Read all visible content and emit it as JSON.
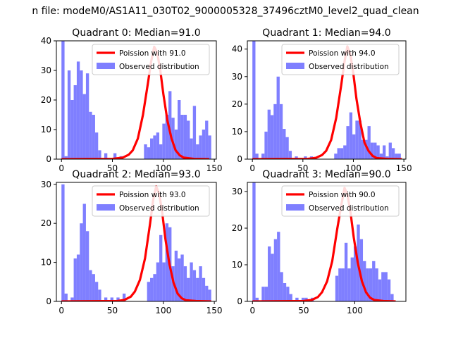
{
  "figure": {
    "suptitle": "n file: modeM0/AS1A11_030T02_9000005328_37496cztM0_level2_quad_clean"
  },
  "colors": {
    "poisson_line": "#ff0000",
    "observed_bars": "#7f7fff",
    "axes": "#000000",
    "background": "#ffffff"
  },
  "chart_data": [
    {
      "type": "bar",
      "title": "Quadrant 0: Median=91.0",
      "xlim": [
        -5,
        152
      ],
      "ylim": [
        0,
        40
      ],
      "xticks": [
        0,
        50,
        100,
        150
      ],
      "yticks": [
        0,
        10,
        20,
        30,
        40
      ],
      "bin_width": 3,
      "legend_placement": "top-right",
      "series": [
        {
          "name": "Poission with 91.0",
          "kind": "line",
          "mean": 91.0,
          "peak": 38,
          "points": [
            [
              0,
              0
            ],
            [
              50,
              0.1
            ],
            [
              60,
              0.5
            ],
            [
              66,
              1.5
            ],
            [
              70,
              3
            ],
            [
              75,
              7
            ],
            [
              80,
              15
            ],
            [
              85,
              26
            ],
            [
              88,
              33
            ],
            [
              91,
              38
            ],
            [
              94,
              36
            ],
            [
              97,
              30
            ],
            [
              100,
              22
            ],
            [
              104,
              13
            ],
            [
              108,
              7
            ],
            [
              112,
              3
            ],
            [
              116,
              1.3
            ],
            [
              120,
              0.5
            ],
            [
              130,
              0.1
            ],
            [
              145,
              0
            ]
          ]
        },
        {
          "name": "Observed distribution",
          "kind": "histogram",
          "bins": [
            [
              0,
              40
            ],
            [
              3,
              1
            ],
            [
              6,
              30
            ],
            [
              9,
              20
            ],
            [
              12,
              25
            ],
            [
              15,
              33
            ],
            [
              18,
              30
            ],
            [
              21,
              22
            ],
            [
              24,
              29
            ],
            [
              27,
              16
            ],
            [
              30,
              15
            ],
            [
              33,
              9
            ],
            [
              36,
              3
            ],
            [
              42,
              2
            ],
            [
              51,
              2
            ],
            [
              57,
              1
            ],
            [
              81,
              5
            ],
            [
              84,
              4
            ],
            [
              87,
              7
            ],
            [
              90,
              8
            ],
            [
              93,
              9
            ],
            [
              96,
              5
            ],
            [
              99,
              12
            ],
            [
              102,
              15
            ],
            [
              105,
              23
            ],
            [
              108,
              14
            ],
            [
              111,
              10
            ],
            [
              114,
              20
            ],
            [
              117,
              15
            ],
            [
              120,
              15
            ],
            [
              123,
              13
            ],
            [
              126,
              7
            ],
            [
              129,
              18
            ],
            [
              132,
              5
            ],
            [
              135,
              8
            ],
            [
              138,
              10
            ],
            [
              141,
              13
            ],
            [
              144,
              8
            ]
          ]
        }
      ]
    },
    {
      "type": "bar",
      "title": "Quadrant 1: Median=94.0",
      "xlim": [
        -5,
        152
      ],
      "ylim": [
        0,
        43
      ],
      "xticks": [
        0,
        50,
        100,
        150
      ],
      "yticks": [
        0,
        10,
        20,
        30,
        40
      ],
      "bin_width": 3,
      "legend_placement": "top-right",
      "series": [
        {
          "name": "Poission with 94.0",
          "kind": "line",
          "mean": 94.0,
          "peak": 41,
          "points": [
            [
              0,
              0
            ],
            [
              55,
              0.1
            ],
            [
              63,
              0.5
            ],
            [
              69,
              1.5
            ],
            [
              73,
              3
            ],
            [
              78,
              7
            ],
            [
              83,
              15
            ],
            [
              88,
              27
            ],
            [
              91,
              35
            ],
            [
              94,
              41
            ],
            [
              97,
              38
            ],
            [
              100,
              31
            ],
            [
              103,
              22
            ],
            [
              107,
              13
            ],
            [
              111,
              6
            ],
            [
              115,
              3
            ],
            [
              119,
              1.2
            ],
            [
              123,
              0.4
            ],
            [
              133,
              0.1
            ],
            [
              148,
              0
            ]
          ]
        },
        {
          "name": "Observed distribution",
          "kind": "histogram",
          "bins": [
            [
              0,
              44
            ],
            [
              3,
              2
            ],
            [
              9,
              2
            ],
            [
              12,
              10
            ],
            [
              15,
              18
            ],
            [
              18,
              16
            ],
            [
              21,
              20
            ],
            [
              24,
              30
            ],
            [
              27,
              20
            ],
            [
              30,
              11
            ],
            [
              33,
              8
            ],
            [
              36,
              3
            ],
            [
              42,
              1
            ],
            [
              51,
              1
            ],
            [
              57,
              1
            ],
            [
              81,
              2
            ],
            [
              84,
              4
            ],
            [
              87,
              4
            ],
            [
              90,
              5
            ],
            [
              93,
              12
            ],
            [
              96,
              17
            ],
            [
              99,
              9
            ],
            [
              102,
              14
            ],
            [
              105,
              14
            ],
            [
              108,
              7
            ],
            [
              111,
              7
            ],
            [
              114,
              12
            ],
            [
              117,
              6
            ],
            [
              120,
              6
            ],
            [
              123,
              5
            ],
            [
              126,
              2
            ],
            [
              129,
              5
            ],
            [
              132,
              1
            ],
            [
              135,
              6
            ],
            [
              138,
              4
            ],
            [
              141,
              2
            ],
            [
              144,
              2
            ]
          ]
        }
      ]
    },
    {
      "type": "bar",
      "title": "Quadrant 2: Median=93.0",
      "xlim": [
        -5,
        152
      ],
      "ylim": [
        0,
        30.5
      ],
      "xticks": [
        0,
        50,
        100,
        150
      ],
      "yticks": [
        0,
        10,
        20,
        30
      ],
      "bin_width": 3,
      "legend_placement": "top-right",
      "series": [
        {
          "name": "Poission with 93.0",
          "kind": "line",
          "mean": 93.0,
          "peak": 29.5,
          "points": [
            [
              0,
              0
            ],
            [
              55,
              0.1
            ],
            [
              62,
              0.4
            ],
            [
              68,
              1.2
            ],
            [
              72,
              2.5
            ],
            [
              77,
              5.5
            ],
            [
              82,
              11
            ],
            [
              87,
              20
            ],
            [
              90,
              26
            ],
            [
              93,
              29.5
            ],
            [
              96,
              27.5
            ],
            [
              99,
              22.5
            ],
            [
              102,
              16
            ],
            [
              106,
              9.5
            ],
            [
              110,
              4.8
            ],
            [
              114,
              2
            ],
            [
              118,
              0.8
            ],
            [
              122,
              0.3
            ],
            [
              132,
              0.1
            ],
            [
              147,
              0
            ]
          ]
        },
        {
          "name": "Observed distribution",
          "kind": "histogram",
          "bins": [
            [
              0,
              30
            ],
            [
              3,
              2
            ],
            [
              9,
              1
            ],
            [
              12,
              11
            ],
            [
              15,
              12
            ],
            [
              18,
              20
            ],
            [
              21,
              25
            ],
            [
              24,
              18
            ],
            [
              27,
              8
            ],
            [
              30,
              7
            ],
            [
              33,
              5
            ],
            [
              36,
              3
            ],
            [
              42,
              1
            ],
            [
              48,
              1
            ],
            [
              54,
              1
            ],
            [
              60,
              2
            ],
            [
              84,
              5
            ],
            [
              87,
              6
            ],
            [
              90,
              7
            ],
            [
              93,
              10
            ],
            [
              96,
              17
            ],
            [
              99,
              10
            ],
            [
              102,
              20
            ],
            [
              105,
              19
            ],
            [
              108,
              9
            ],
            [
              111,
              13
            ],
            [
              114,
              11
            ],
            [
              117,
              12
            ],
            [
              120,
              9
            ],
            [
              123,
              6
            ],
            [
              126,
              10
            ],
            [
              129,
              8
            ],
            [
              132,
              6
            ],
            [
              135,
              9
            ],
            [
              138,
              6
            ],
            [
              141,
              4
            ],
            [
              144,
              3
            ]
          ]
        }
      ]
    },
    {
      "type": "bar",
      "title": "Quadrant 3: Median=90.0",
      "xlim": [
        -5,
        150
      ],
      "ylim": [
        0,
        32.5
      ],
      "xticks": [
        0,
        50,
        100
      ],
      "yticks": [
        0,
        10,
        20,
        30
      ],
      "bin_width": 3,
      "legend_placement": "top-right",
      "series": [
        {
          "name": "Poission with 90.0",
          "kind": "line",
          "mean": 90.0,
          "peak": 31,
          "points": [
            [
              0,
              0
            ],
            [
              50,
              0.1
            ],
            [
              58,
              0.4
            ],
            [
              64,
              1.2
            ],
            [
              68,
              2.5
            ],
            [
              73,
              5.5
            ],
            [
              78,
              11
            ],
            [
              83,
              20
            ],
            [
              87,
              26.5
            ],
            [
              90,
              31
            ],
            [
              93,
              29
            ],
            [
              96,
              24
            ],
            [
              99,
              17.5
            ],
            [
              103,
              10.5
            ],
            [
              107,
              5.5
            ],
            [
              111,
              2.5
            ],
            [
              115,
              1
            ],
            [
              119,
              0.4
            ],
            [
              128,
              0.1
            ],
            [
              140,
              0
            ]
          ]
        },
        {
          "name": "Observed distribution",
          "kind": "histogram",
          "bins": [
            [
              0,
              33
            ],
            [
              3,
              1
            ],
            [
              9,
              4
            ],
            [
              12,
              4
            ],
            [
              15,
              15
            ],
            [
              18,
              13
            ],
            [
              21,
              17
            ],
            [
              24,
              19
            ],
            [
              27,
              8
            ],
            [
              30,
              5
            ],
            [
              33,
              4
            ],
            [
              36,
              2
            ],
            [
              42,
              1
            ],
            [
              48,
              1
            ],
            [
              51,
              1
            ],
            [
              57,
              1
            ],
            [
              81,
              7
            ],
            [
              84,
              9
            ],
            [
              87,
              9
            ],
            [
              90,
              16
            ],
            [
              93,
              9
            ],
            [
              96,
              12
            ],
            [
              99,
              15
            ],
            [
              102,
              21
            ],
            [
              105,
              17
            ],
            [
              108,
              11
            ],
            [
              111,
              9
            ],
            [
              114,
              9
            ],
            [
              117,
              11
            ],
            [
              120,
              9
            ],
            [
              123,
              6
            ],
            [
              126,
              8
            ],
            [
              129,
              8
            ],
            [
              132,
              6
            ],
            [
              135,
              2
            ]
          ]
        }
      ]
    }
  ]
}
